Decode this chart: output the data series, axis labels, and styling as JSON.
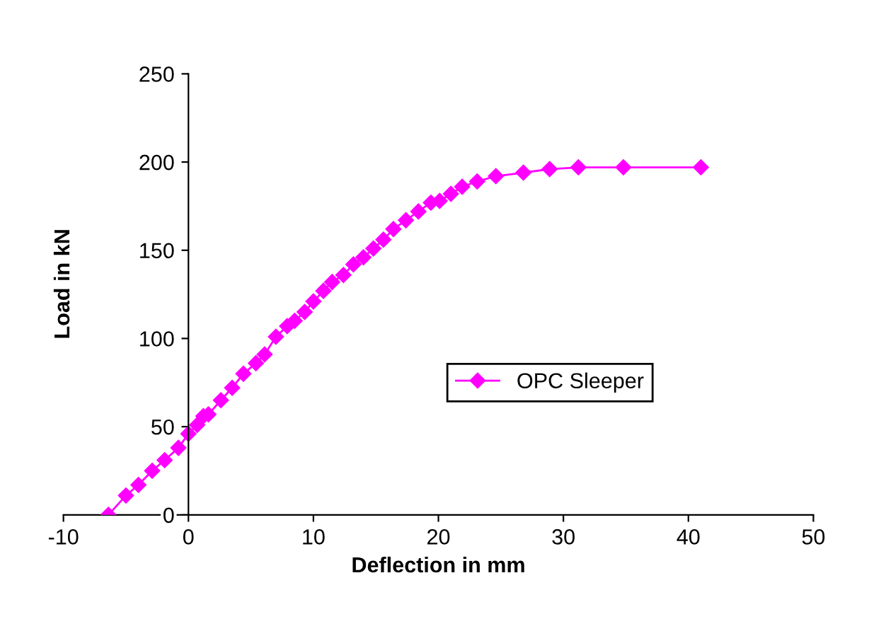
{
  "chart_data": {
    "type": "line",
    "xlabel": "Deflection in mm",
    "ylabel": "Load in kN",
    "xlim": [
      -10,
      50
    ],
    "xticks": [
      -10,
      0,
      10,
      20,
      30,
      40,
      50
    ],
    "ylim": [
      0,
      250
    ],
    "yticks": [
      0,
      50,
      100,
      150,
      200,
      250
    ],
    "grid": false,
    "legend": "right",
    "marker": "diamond",
    "line_style": "solid",
    "series": [
      {
        "name": "OPC Sleeper",
        "color": "#ff00ff",
        "x": [
          -6.4,
          -5.0,
          -4.0,
          -2.9,
          -1.9,
          -0.8,
          0,
          0.7,
          1.2,
          1.6,
          2.6,
          3.5,
          4.4,
          5.4,
          6.1,
          7.0,
          7.9,
          8.5,
          9.3,
          10.0,
          10.8,
          11.5,
          12.4,
          13.2,
          14.0,
          14.8,
          15.6,
          16.4,
          17.4,
          18.4,
          19.4,
          20.1,
          21.0,
          21.9,
          23.1,
          24.6,
          26.8,
          28.9,
          31.2,
          34.8,
          41.0
        ],
        "values": [
          0,
          11,
          17,
          25,
          31,
          38,
          46,
          51,
          56,
          57,
          65,
          72,
          80,
          86,
          91,
          101,
          107,
          110,
          115,
          121,
          127,
          132,
          136,
          142,
          146,
          151,
          156,
          162,
          167,
          172,
          177,
          178,
          182,
          186,
          189,
          192,
          194,
          196,
          197,
          197,
          197
        ]
      }
    ]
  }
}
